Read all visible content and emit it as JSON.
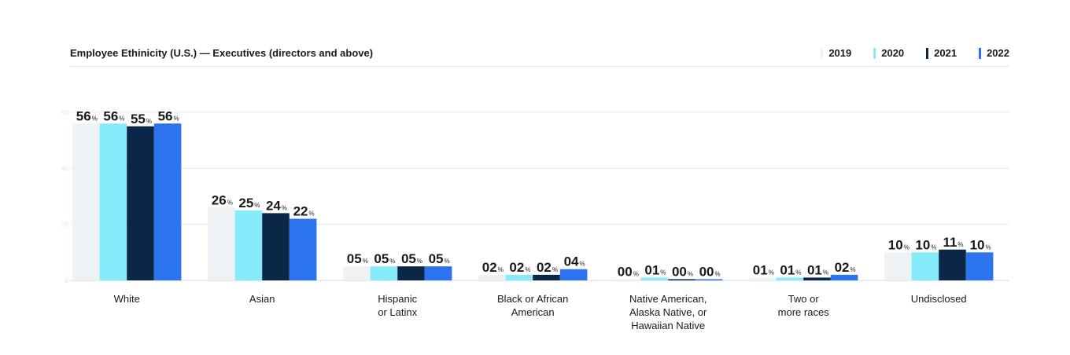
{
  "chart_data": {
    "type": "bar",
    "title": "Employee Ethinicity (U.S.) — Executives (directors and above)",
    "categories": [
      "White",
      "Asian",
      "Hispanic\nor Latinx",
      "Black or African\nAmerican",
      "Native American,\nAlaska Native, or\nHawaiian Native",
      "Two or\nmore races",
      "Undisclosed"
    ],
    "series": [
      {
        "name": "2019",
        "color": "#eef2f5",
        "values": [
          56,
          26,
          5,
          2,
          0,
          1,
          10
        ],
        "labels": [
          "56",
          "26",
          "05",
          "02",
          "00",
          "01",
          "10"
        ]
      },
      {
        "name": "2020",
        "color": "#86ecfb",
        "values": [
          56,
          25,
          5,
          2,
          1,
          1,
          10
        ],
        "labels": [
          "56",
          "25",
          "05",
          "02",
          "01",
          "01",
          "10"
        ]
      },
      {
        "name": "2021",
        "color": "#0a2748",
        "values": [
          55,
          24,
          5,
          2,
          0,
          1,
          11
        ],
        "labels": [
          "55",
          "24",
          "05",
          "02",
          "00",
          "01",
          "11"
        ]
      },
      {
        "name": "2022",
        "color": "#2c74ef",
        "values": [
          56,
          22,
          5,
          4,
          0,
          2,
          10
        ],
        "labels": [
          "56",
          "22",
          "05",
          "04",
          "00",
          "02",
          "10"
        ]
      }
    ],
    "unit": "%",
    "y_ticks": [
      "0",
      "20",
      "40",
      "60"
    ],
    "ylim": [
      0,
      60
    ],
    "grid": true,
    "legend_position": "top-right"
  }
}
